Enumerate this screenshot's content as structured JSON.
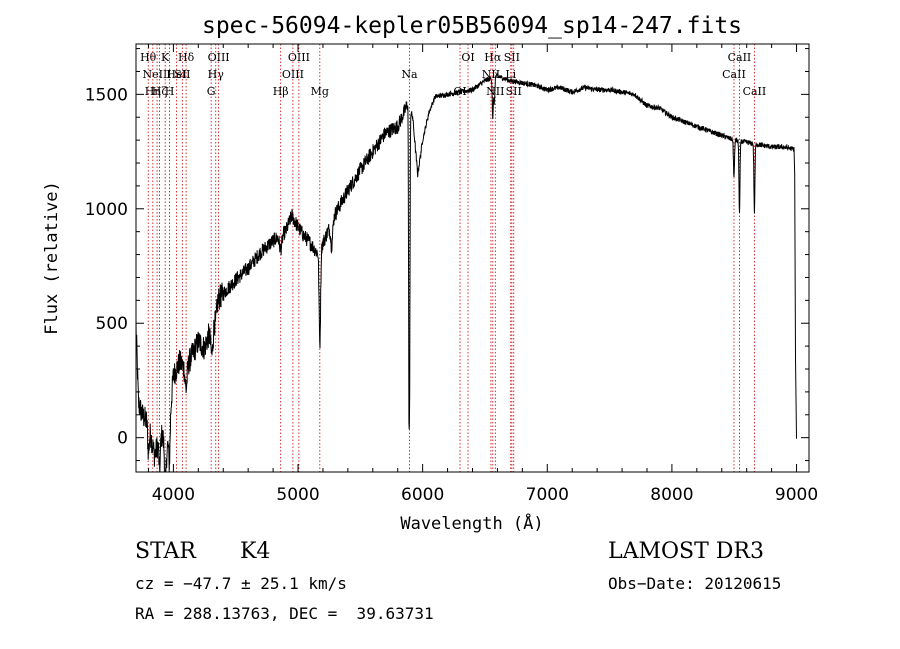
{
  "chart_data": {
    "type": "line",
    "title": "spec-56094-kepler05B56094_sp14-247.fits",
    "xlabel": "Wavelength (Å)",
    "ylabel": "Flux (relative)",
    "xlim": [
      3700,
      9100
    ],
    "ylim": [
      -150,
      1720
    ],
    "x_ticks": [
      4000,
      5000,
      6000,
      7000,
      8000,
      9000
    ],
    "y_ticks": [
      0,
      500,
      1000,
      1500
    ],
    "series": [
      {
        "name": "flux",
        "anchors": [
          [
            3700,
            500
          ],
          [
            3720,
            150
          ],
          [
            3750,
            100
          ],
          [
            3800,
            60
          ],
          [
            3850,
            -80
          ],
          [
            3900,
            20
          ],
          [
            3950,
            -50
          ],
          [
            4000,
            270
          ],
          [
            4050,
            330
          ],
          [
            4100,
            300
          ],
          [
            4150,
            360
          ],
          [
            4200,
            420
          ],
          [
            4250,
            390
          ],
          [
            4300,
            480
          ],
          [
            4350,
            600
          ],
          [
            4400,
            630
          ],
          [
            4500,
            690
          ],
          [
            4600,
            740
          ],
          [
            4700,
            810
          ],
          [
            4800,
            860
          ],
          [
            4900,
            900
          ],
          [
            4950,
            970
          ],
          [
            5000,
            920
          ],
          [
            5050,
            880
          ],
          [
            5100,
            850
          ],
          [
            5150,
            810
          ],
          [
            5200,
            850
          ],
          [
            5300,
            980
          ],
          [
            5400,
            1080
          ],
          [
            5500,
            1170
          ],
          [
            5600,
            1250
          ],
          [
            5700,
            1330
          ],
          [
            5800,
            1360
          ],
          [
            5850,
            1420
          ],
          [
            5880,
            1460
          ],
          [
            5920,
            1400
          ],
          [
            5960,
            1150
          ],
          [
            6000,
            1300
          ],
          [
            6050,
            1420
          ],
          [
            6100,
            1490
          ],
          [
            6200,
            1500
          ],
          [
            6300,
            1510
          ],
          [
            6400,
            1520
          ],
          [
            6500,
            1560
          ],
          [
            6600,
            1580
          ],
          [
            6700,
            1560
          ],
          [
            6800,
            1550
          ],
          [
            6900,
            1540
          ],
          [
            7000,
            1520
          ],
          [
            7100,
            1530
          ],
          [
            7200,
            1510
          ],
          [
            7300,
            1530
          ],
          [
            7400,
            1520
          ],
          [
            7500,
            1520
          ],
          [
            7600,
            1510
          ],
          [
            7700,
            1500
          ],
          [
            7800,
            1450
          ],
          [
            7900,
            1440
          ],
          [
            8000,
            1400
          ],
          [
            8100,
            1380
          ],
          [
            8200,
            1360
          ],
          [
            8300,
            1340
          ],
          [
            8400,
            1320
          ],
          [
            8500,
            1300
          ],
          [
            8600,
            1290
          ],
          [
            8700,
            1280
          ],
          [
            8800,
            1270
          ],
          [
            8900,
            1270
          ],
          [
            8980,
            1260
          ]
        ],
        "dips": [
          {
            "x": 3800,
            "depth": 120,
            "w": 6
          },
          {
            "x": 3890,
            "depth": 140,
            "w": 6
          },
          {
            "x": 3935,
            "depth": 180,
            "w": 6
          },
          {
            "x": 3968,
            "depth": 170,
            "w": 6
          },
          {
            "x": 4102,
            "depth": 90,
            "w": 8
          },
          {
            "x": 4310,
            "depth": 140,
            "w": 10
          },
          {
            "x": 4340,
            "depth": 70,
            "w": 8
          },
          {
            "x": 4861,
            "depth": 60,
            "w": 10
          },
          {
            "x": 5175,
            "depth": 420,
            "w": 6
          },
          {
            "x": 5270,
            "depth": 100,
            "w": 8
          },
          {
            "x": 5890,
            "depth": 1200,
            "w": 3
          },
          {
            "x": 5896,
            "depth": 1100,
            "w": 3
          },
          {
            "x": 6563,
            "depth": 180,
            "w": 4
          },
          {
            "x": 6575,
            "depth": 120,
            "w": 4
          },
          {
            "x": 8498,
            "depth": 170,
            "w": 4
          },
          {
            "x": 8542,
            "depth": 320,
            "w": 4
          },
          {
            "x": 8662,
            "depth": 300,
            "w": 4
          }
        ],
        "tail": [
          [
            8985,
            1150
          ],
          [
            8992,
            350
          ],
          [
            9000,
            -5
          ]
        ]
      }
    ],
    "lines": [
      {
        "x": 3798,
        "label": "Hθ",
        "row": 0
      },
      {
        "x": 3835,
        "label": "Hη",
        "row": 2
      },
      {
        "x": 3869,
        "label": "NeIII",
        "row": 1
      },
      {
        "x": 3889,
        "label": "Hζ",
        "row": 2
      },
      {
        "x": 3934,
        "label": "K",
        "row": 0
      },
      {
        "x": 3969,
        "label": "H",
        "row": 2
      },
      {
        "x": 4026,
        "label": "HeI",
        "row": 1
      },
      {
        "x": 4072,
        "label": "SII",
        "row": 1
      },
      {
        "x": 4102,
        "label": "Hδ",
        "row": 0
      },
      {
        "x": 4303,
        "label": "G",
        "row": 2
      },
      {
        "x": 4340,
        "label": "Hγ",
        "row": 1
      },
      {
        "x": 4363,
        "label": "OIII",
        "row": 0
      },
      {
        "x": 4861,
        "label": "Hβ",
        "row": 2
      },
      {
        "x": 4959,
        "label": "OIII",
        "row": 1
      },
      {
        "x": 5007,
        "label": "OIII",
        "row": 0
      },
      {
        "x": 5175,
        "label": "Mg",
        "row": 2
      },
      {
        "x": 5894,
        "label": "Na",
        "row": 1
      },
      {
        "x": 6300,
        "label": "OI",
        "row": 2
      },
      {
        "x": 6364,
        "label": "OI",
        "row": 0
      },
      {
        "x": 6548,
        "label": "NII",
        "row": 1
      },
      {
        "x": 6563,
        "label": "Hα",
        "row": 0
      },
      {
        "x": 6583,
        "label": "NII",
        "row": 2
      },
      {
        "x": 6707,
        "label": "Li",
        "row": 1
      },
      {
        "x": 6716,
        "label": "SII",
        "row": 0
      },
      {
        "x": 6731,
        "label": "SII",
        "row": 2
      },
      {
        "x": 8498,
        "label": "CaII",
        "row": 1
      },
      {
        "x": 8542,
        "label": "CaII",
        "row": 0
      },
      {
        "x": 8662,
        "label": "CaII",
        "row": 2
      }
    ]
  },
  "info": {
    "class_label": "STAR",
    "subclass": "K4",
    "survey": "LAMOST DR3",
    "cz": "cz = −47.7 ± 25.1 km/s",
    "obs_date": "Obs−Date: 20120615",
    "coords": "RA = 288.13763, DEC =  39.63731"
  }
}
